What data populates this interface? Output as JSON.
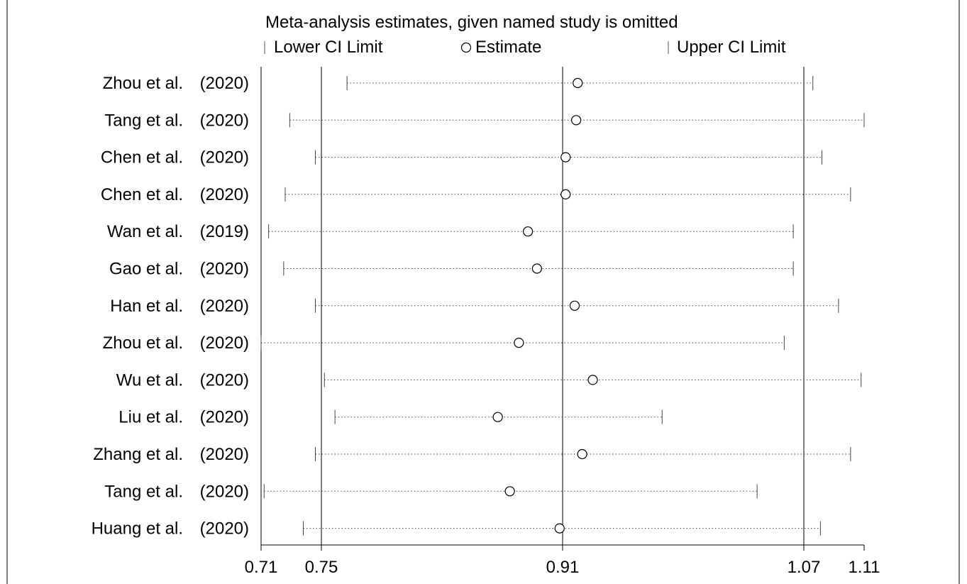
{
  "chart_data": {
    "type": "scatter",
    "title": "Meta-analysis estimates, given named study is omitted",
    "legend": {
      "placement": "top",
      "items": [
        {
          "symbol": "tick",
          "label": "Lower CI Limit"
        },
        {
          "symbol": "circle",
          "label": "Estimate"
        },
        {
          "symbol": "tick",
          "label": "Upper CI Limit"
        }
      ]
    },
    "xlim": [
      0.71,
      1.11
    ],
    "x_ticks": [
      {
        "value": 0.71,
        "label": "0.71"
      },
      {
        "value": 0.75,
        "label": "0.75"
      },
      {
        "value": 0.91,
        "label": "0.91"
      },
      {
        "value": 1.07,
        "label": "1.07"
      },
      {
        "value": 1.11,
        "label": "1.11"
      }
    ],
    "reference_lines": [
      0.75,
      0.91,
      1.07
    ],
    "studies": [
      {
        "name": "Zhou et al.",
        "year": "(2020)",
        "lower": 0.767,
        "estimate": 0.92,
        "upper": 1.076
      },
      {
        "name": "Tang et al.",
        "year": "(2020)",
        "lower": 0.729,
        "estimate": 0.919,
        "upper": 1.11
      },
      {
        "name": "Chen et al.",
        "year": "(2020)",
        "lower": 0.746,
        "estimate": 0.912,
        "upper": 1.082
      },
      {
        "name": "Chen et al.",
        "year": "(2020)",
        "lower": 0.726,
        "estimate": 0.912,
        "upper": 1.101
      },
      {
        "name": "Wan et al.",
        "year": "(2019)",
        "lower": 0.715,
        "estimate": 0.887,
        "upper": 1.063
      },
      {
        "name": "Gao et al.",
        "year": "(2020)",
        "lower": 0.725,
        "estimate": 0.893,
        "upper": 1.063
      },
      {
        "name": "Han et al.",
        "year": "(2020)",
        "lower": 0.746,
        "estimate": 0.918,
        "upper": 1.093
      },
      {
        "name": "Zhou et al.",
        "year": "(2020)",
        "lower": 0.71,
        "estimate": 0.881,
        "upper": 1.057
      },
      {
        "name": "Wu et al.",
        "year": "(2020)",
        "lower": 0.752,
        "estimate": 0.93,
        "upper": 1.108
      },
      {
        "name": "Liu et al.",
        "year": "(2020)",
        "lower": 0.759,
        "estimate": 0.867,
        "upper": 0.976
      },
      {
        "name": "Zhang et al.",
        "year": "(2020)",
        "lower": 0.746,
        "estimate": 0.923,
        "upper": 1.101
      },
      {
        "name": "Tang et al.",
        "year": "(2020)",
        "lower": 0.712,
        "estimate": 0.875,
        "upper": 1.039
      },
      {
        "name": "Huang et al.",
        "year": "(2020)",
        "lower": 0.738,
        "estimate": 0.908,
        "upper": 1.081
      }
    ]
  }
}
